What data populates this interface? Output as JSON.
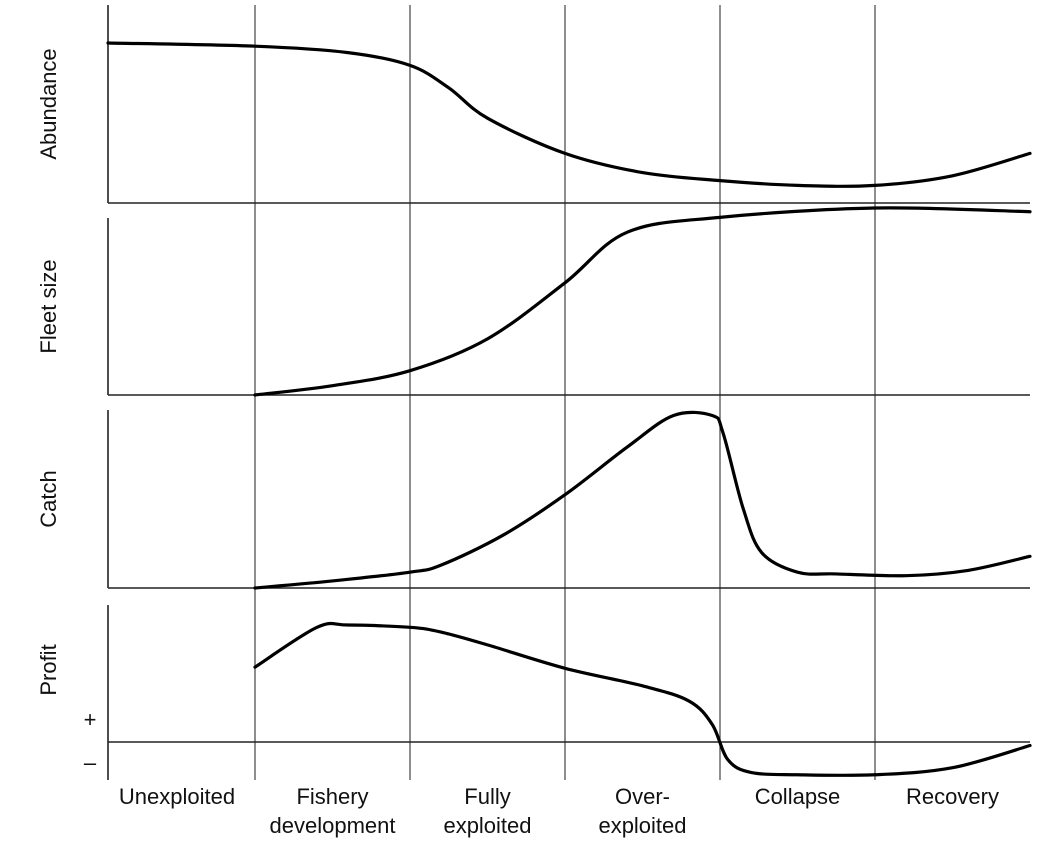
{
  "chart_data": {
    "type": "line",
    "categories": [
      [
        "Unexploited"
      ],
      [
        "Fishery",
        "development"
      ],
      [
        "Fully",
        "exploited"
      ],
      [
        "Over-",
        "exploited"
      ],
      [
        "Collapse"
      ],
      [
        "Recovery"
      ]
    ],
    "grid": "vertical lines between phases",
    "panels": [
      {
        "ylabel": "Abundance",
        "x": [
          0,
          1,
          1.6,
          2,
          2.25,
          2.5,
          3,
          3.5,
          4,
          4.5,
          5,
          5.5,
          6
        ],
        "y": [
          1.0,
          0.98,
          0.94,
          0.86,
          0.72,
          0.53,
          0.31,
          0.19,
          0.14,
          0.11,
          0.11,
          0.17,
          0.31
        ]
      },
      {
        "ylabel": "Fleet size",
        "x": [
          1,
          1.5,
          2,
          2.5,
          3,
          3.4,
          4,
          5,
          6
        ],
        "y": [
          0,
          0.05,
          0.13,
          0.3,
          0.6,
          0.87,
          0.95,
          1.0,
          0.98
        ]
      },
      {
        "ylabel": "Catch",
        "x": [
          1,
          1.5,
          2,
          2.2,
          2.6,
          3,
          3.4,
          3.7,
          3.95,
          4.02,
          4.15,
          4.27,
          4.5,
          4.75,
          5.2,
          5.6,
          6
        ],
        "y": [
          0,
          0.04,
          0.09,
          0.13,
          0.3,
          0.53,
          0.8,
          0.98,
          0.98,
          0.88,
          0.45,
          0.2,
          0.09,
          0.08,
          0.07,
          0.1,
          0.18
        ]
      },
      {
        "ylabel": "Profit",
        "plus": "+",
        "minus": "–",
        "x": [
          1,
          1.4,
          1.6,
          2,
          2.2,
          2.5,
          3,
          3.5,
          3.8,
          3.95,
          4.05,
          4.2,
          4.5,
          5,
          5.5,
          6
        ],
        "y": [
          0.64,
          0.98,
          1.0,
          0.98,
          0.94,
          0.83,
          0.63,
          0.48,
          0.35,
          0.15,
          -0.15,
          -0.26,
          -0.28,
          -0.28,
          -0.22,
          -0.03
        ]
      }
    ]
  }
}
